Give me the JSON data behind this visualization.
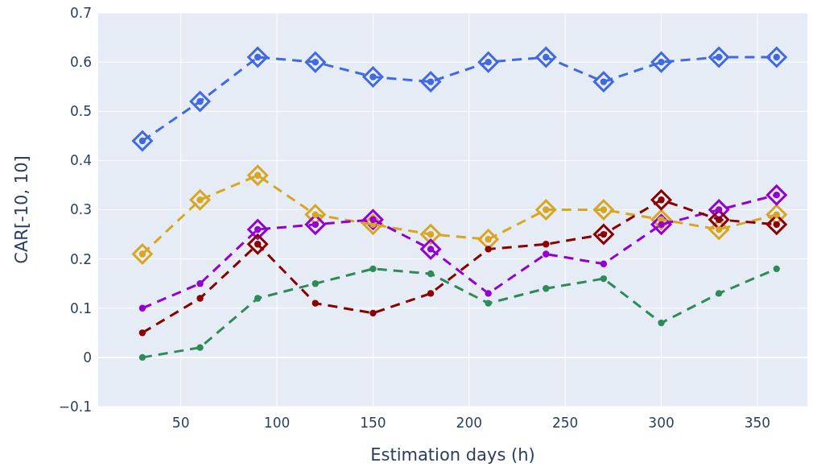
{
  "chart_data": {
    "type": "line",
    "xlabel": "Estimation days (h)",
    "ylabel": "CAR[-10, 10]",
    "x": [
      30,
      60,
      90,
      120,
      150,
      180,
      210,
      240,
      270,
      300,
      330,
      360
    ],
    "xlim": [
      7,
      376
    ],
    "xticks": [
      50,
      100,
      150,
      200,
      250,
      300,
      350
    ],
    "ylim": [
      -0.1,
      0.7
    ],
    "yticks": [
      {
        "value": -0.1,
        "label": "−0.1"
      },
      0,
      0.1,
      0.2,
      0.3,
      0.4,
      0.5,
      0.6,
      0.7
    ],
    "grid": true,
    "series": [
      {
        "type": "line",
        "marker": "circle",
        "line_style": "dashed",
        "color": "#4169e1",
        "values": [
          0.44,
          0.52,
          0.61,
          0.6,
          0.57,
          0.56,
          0.6,
          0.61,
          0.56,
          0.6,
          0.61,
          0.61
        ]
      },
      {
        "type": "scatter",
        "marker": "diamond",
        "color": "#4169e1",
        "values": [
          0.44,
          0.52,
          0.61,
          0.6,
          0.57,
          0.56,
          0.6,
          0.61,
          0.56,
          0.6,
          0.61,
          0.61
        ]
      },
      {
        "type": "line",
        "marker": "circle",
        "line_style": "dashed",
        "color": "#daa520",
        "values": [
          0.21,
          0.32,
          0.37,
          0.29,
          0.27,
          0.25,
          0.24,
          0.3,
          0.3,
          0.28,
          0.26,
          0.29
        ]
      },
      {
        "type": "scatter",
        "marker": "diamond",
        "color": "#daa520",
        "values": [
          0.21,
          0.32,
          0.37,
          0.29,
          0.27,
          0.25,
          0.24,
          0.3,
          0.3,
          0.28,
          0.26,
          0.29
        ]
      },
      {
        "type": "line",
        "marker": "circle",
        "line_style": "dashed",
        "color": "#9400d3",
        "values": [
          0.1,
          0.15,
          0.26,
          0.27,
          0.28,
          0.22,
          0.13,
          0.21,
          0.19,
          0.27,
          0.3,
          0.33
        ]
      },
      {
        "type": "scatter",
        "marker": "diamond",
        "color": "#9400d3",
        "values": [
          null,
          null,
          0.26,
          0.27,
          0.28,
          0.22,
          null,
          null,
          null,
          0.27,
          0.3,
          0.33
        ]
      },
      {
        "type": "line",
        "marker": "circle",
        "line_style": "dashed",
        "color": "#8b0000",
        "values": [
          0.05,
          0.12,
          0.23,
          0.11,
          0.09,
          0.13,
          0.22,
          0.23,
          0.25,
          0.32,
          0.28,
          0.27
        ]
      },
      {
        "type": "scatter",
        "marker": "diamond",
        "color": "#8b0000",
        "values": [
          null,
          null,
          0.23,
          null,
          null,
          null,
          null,
          null,
          0.25,
          0.32,
          0.28,
          0.27
        ]
      },
      {
        "marker": "circle",
        "line_style": "dashed",
        "color": "#2e8b57",
        "values": [
          0.0,
          0.02,
          0.12,
          0.15,
          0.18,
          0.17,
          0.11,
          0.14,
          0.16,
          0.07,
          0.13,
          0.18
        ]
      }
    ]
  }
}
